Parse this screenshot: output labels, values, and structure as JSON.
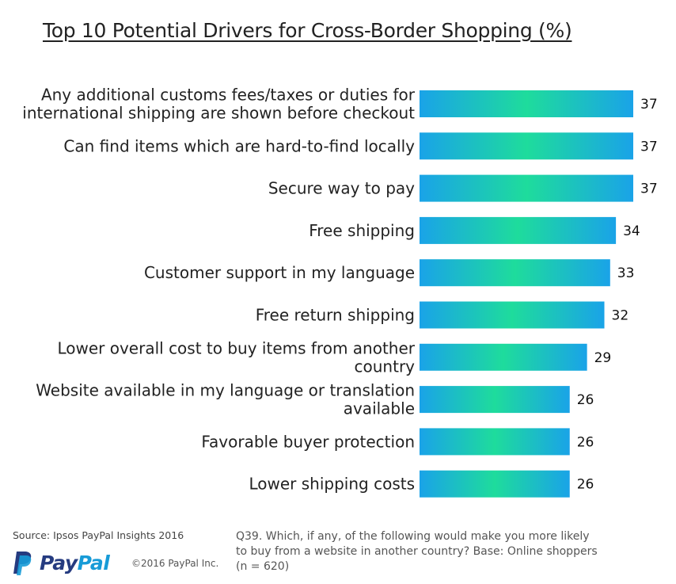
{
  "title": "Top 10 Potential Drivers for Cross-Border Shopping (%)",
  "chart_data": {
    "type": "bar",
    "orientation": "horizontal",
    "title": "Top 10 Potential Drivers for Cross-Border Shopping (%)",
    "xlim": [
      0,
      37
    ],
    "categories": [
      [
        "Any additional customs fees/taxes or duties for",
        "international shipping are shown before checkout"
      ],
      [
        "Can find items which are hard-to-find locally"
      ],
      [
        "Secure way to pay"
      ],
      [
        "Free shipping"
      ],
      [
        "Customer support in my language"
      ],
      [
        "Free return shipping"
      ],
      [
        "Lower overall cost to buy items from another",
        "country"
      ],
      [
        "Website available in my language or translation",
        "available"
      ],
      [
        "Favorable buyer protection"
      ],
      [
        "Lower shipping costs"
      ]
    ],
    "values": [
      37,
      37,
      37,
      34,
      33,
      32,
      29,
      26,
      26,
      26
    ],
    "bar_gradient": [
      "#1aa3e8",
      "#1edc9c",
      "#1aa3e8"
    ]
  },
  "source": "Source: Ipsos PayPal Insights 2016",
  "logo": {
    "pay": "Pay",
    "pal": "Pal"
  },
  "copyright": "©2016 PayPal Inc.",
  "footnote": "Q39. Which, if any, of the following would make you more likely to buy from a website in another country? Base: Online shoppers (n = 620)"
}
